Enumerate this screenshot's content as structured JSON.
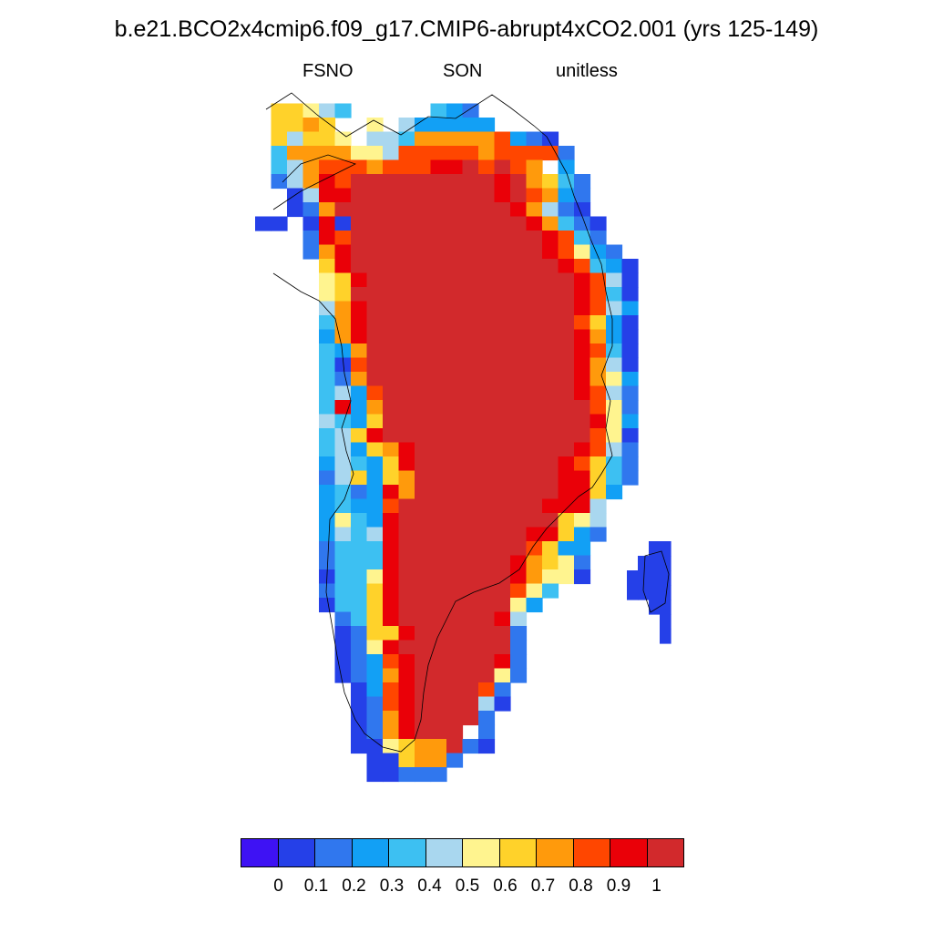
{
  "title": "b.e21.BCO2x4cmip6.f09_g17.CMIP6-abrupt4xCO2.001 (yrs 125-149)",
  "subtitle": {
    "variable": "FSNO",
    "season": "SON",
    "units": "unitless"
  },
  "colorbar": {
    "colors": [
      "#3e12f4",
      "#2540e8",
      "#3077ee",
      "#12a0f5",
      "#3dc0f2",
      "#a9d7ef",
      "#fff48f",
      "#ffd22a",
      "#ff9a0c",
      "#ff4600",
      "#ea0008",
      "#d2292c"
    ],
    "labels": [
      "0",
      "0.1",
      "0.2",
      "0.3",
      "0.4",
      "0.5",
      "0.6",
      "0.7",
      "0.8",
      "0.9",
      "1"
    ]
  },
  "map": {
    "region": "Greenland",
    "palette_index_meaning": "index k in colorbar.colors; bins bounded by labels",
    "rows": [
      "........................",
      ".77654.....432..........",
      ".7787..6.533333.........",
      ".75776.554888889321.....",
      ".4888866599999899992....",
      ".4589998999AAB9B98.3....",
      ".258A9BBBBBBBBBAB8742...",
      "..15AABBBBBBBBBAB9832...",
      "..128BBBBBBBBBBBA8521...",
      "11.1A1BBBBBBBBBBBA8421..",
      "...2A9BBBBBBBBBBBBA942..",
      "...28ABBBBBBBBBBBBA9632.",
      "....7ABBBBBBBBBBBBBA9431",
      "....67ABBBBBBBBBBBBBA951",
      "....67BBBBBBBBBBBBBBA941",
      "....58ABBBBBBBBBBBBBA953",
      "....48ABBBBBBBBBBBBB9731",
      "....38ABBBBBBBBBBBBBA831",
      "....438BBBBBBBBBBBBBA941",
      "....419BBBBBBBBBBBBBA851",
      "....428BBBBBBBBBBBBBA863",
      "....4539BBBBBBBBBBBBA952",
      "....4A38BBBBBBBBBBBBB962",
      "....5437BBBBBBBBBBBBBA63",
      "....457ABBBBBBBBBBBBB961",
      "....45378ABBBBBBBBBBA952",
      "....35437ABBBBBBBBBA9742",
      "....257378BBBBBBBBBAA742",
      "....3423A8BBBBBBBBBAA73.",
      "....34339BBBBBBBBBAAA5..",
      "....3643ABBBBBBBBBB765..",
      "....3545ABBBBBBBBAA732..",
      "....2444ABBBBBBBB9733...",
      "....2444ABBBBBBBA8762...",
      "....1446ABBBBBBBA8661...",
      "....2447ABBBBBBB964.....",
      "....1447ABBBBBBB63......",
      ".....247ABBBBBBA5.......",
      ".....1277ABBBBBB2.......",
      ".....126ABBBBBBB2.......",
      ".....1239ABBBBBA2.......",
      ".....1238ABBBBB62.......",
      "......139ABBBB92........",
      "......129ABBBB51........",
      "......128ABBBB2.........",
      "......128ABBB.2.........",
      "......116788B21.........",
      ".......117882...........",
      ".......11222............"
    ],
    "island_rows": [
      "..11",
      ".111",
      "1111",
      "1111",
      "..11",
      "...1",
      "...1"
    ]
  }
}
